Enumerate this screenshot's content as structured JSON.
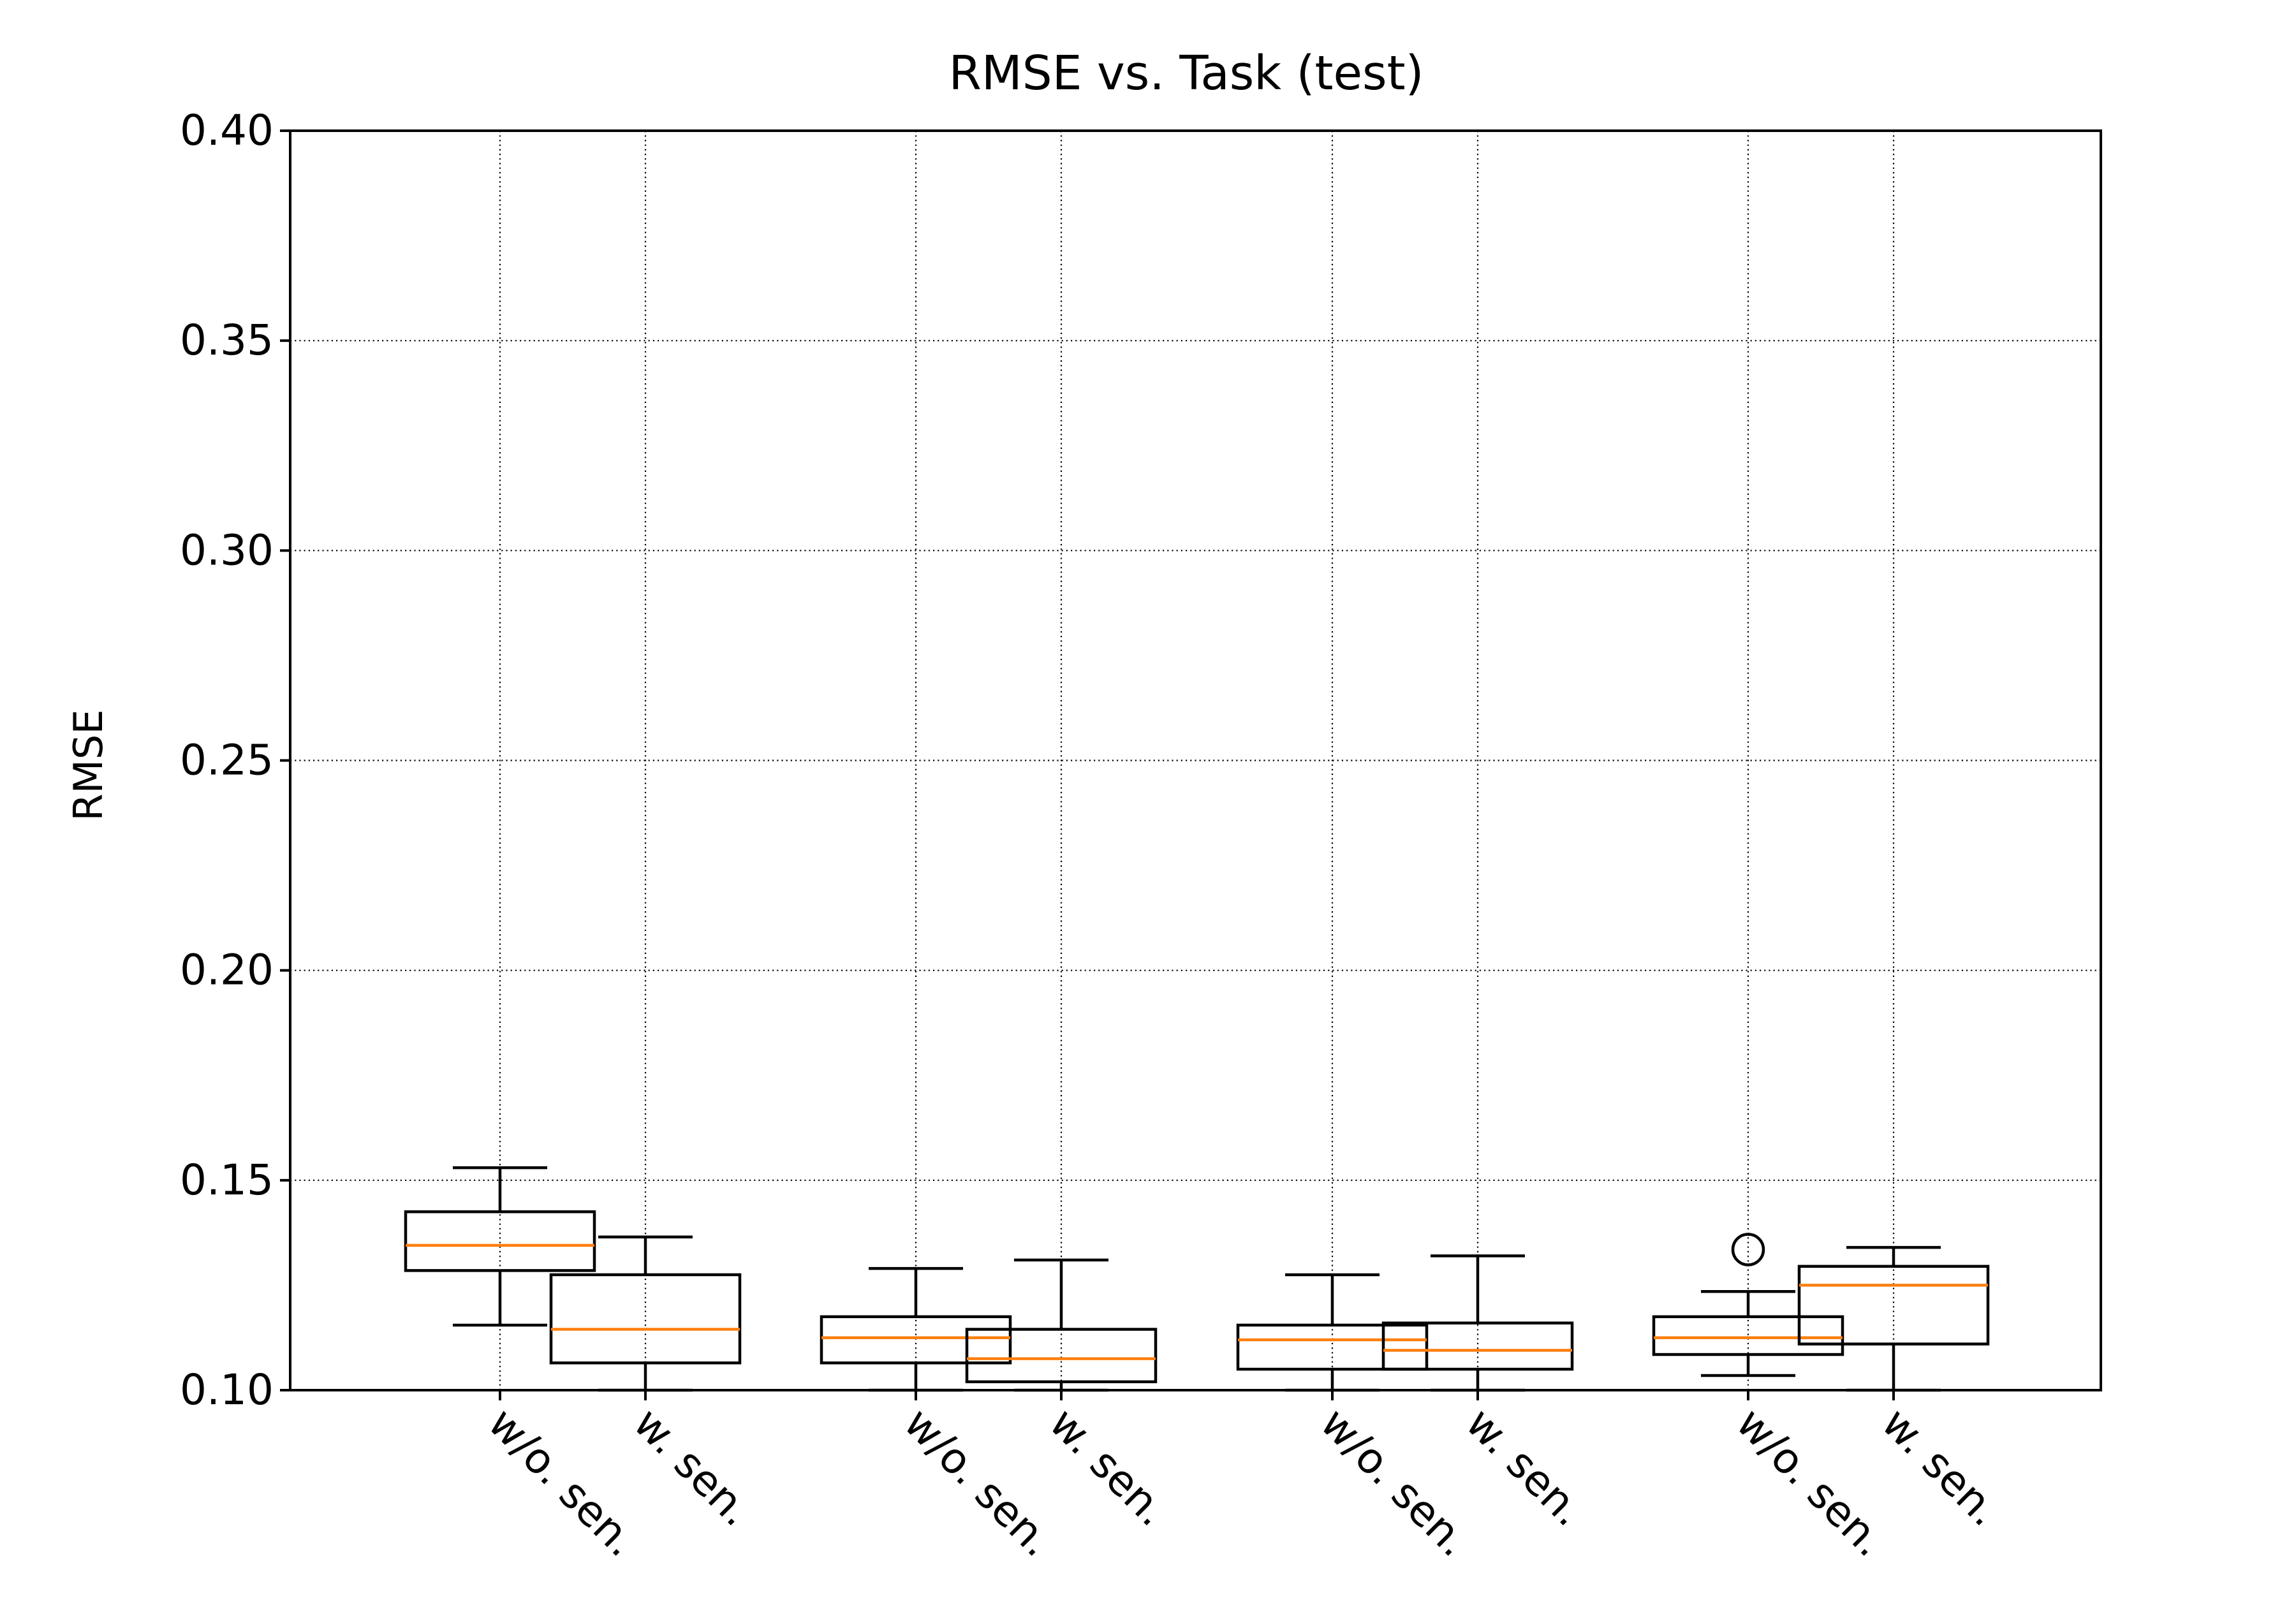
{
  "chart_data": {
    "type": "box",
    "title": "RMSE vs. Task (test)",
    "xlabel": "",
    "ylabel": "RMSE",
    "ylim": [
      0.1,
      0.4
    ],
    "yticks": [
      "0.10",
      "0.15",
      "0.20",
      "0.25",
      "0.30",
      "0.35",
      "0.40"
    ],
    "grid": true,
    "categories": [
      "w/o. sen.",
      "w. sen.",
      "w/o. sen.",
      "w. sen.",
      "w/o. sen.",
      "w. sen.",
      "w/o. sen.",
      "w. sen."
    ],
    "boxes": [
      {
        "label": "w/o. sen.",
        "whislo": 0.1155,
        "q1": 0.1285,
        "med": 0.1345,
        "q3": 0.1425,
        "whishi": 0.153,
        "fliers": []
      },
      {
        "label": "w. sen.",
        "whislo": 0.1,
        "q1": 0.1065,
        "med": 0.1145,
        "q3": 0.1275,
        "whishi": 0.1365,
        "fliers": []
      },
      {
        "label": "w/o. sen.",
        "whislo": 0.1,
        "q1": 0.1065,
        "med": 0.1125,
        "q3": 0.1175,
        "whishi": 0.129,
        "fliers": []
      },
      {
        "label": "w. sen.",
        "whislo": 0.1,
        "q1": 0.102,
        "med": 0.1075,
        "q3": 0.1145,
        "whishi": 0.131,
        "fliers": []
      },
      {
        "label": "w/o. sen.",
        "whislo": 0.1,
        "q1": 0.105,
        "med": 0.112,
        "q3": 0.1155,
        "whishi": 0.1275,
        "fliers": []
      },
      {
        "label": "w. sen.",
        "whislo": 0.1,
        "q1": 0.105,
        "med": 0.1095,
        "q3": 0.116,
        "whishi": 0.132,
        "fliers": []
      },
      {
        "label": "w/o. sen.",
        "whislo": 0.1035,
        "q1": 0.1085,
        "med": 0.1125,
        "q3": 0.1175,
        "whishi": 0.1235,
        "fliers": [
          0.1335
        ]
      },
      {
        "label": "w. sen.",
        "whislo": 0.1,
        "q1": 0.111,
        "med": 0.125,
        "q3": 0.1295,
        "whishi": 0.134,
        "fliers": []
      }
    ],
    "colors": {
      "box": "#000000",
      "median": "#ff7f0e",
      "grid": "#000000"
    }
  }
}
